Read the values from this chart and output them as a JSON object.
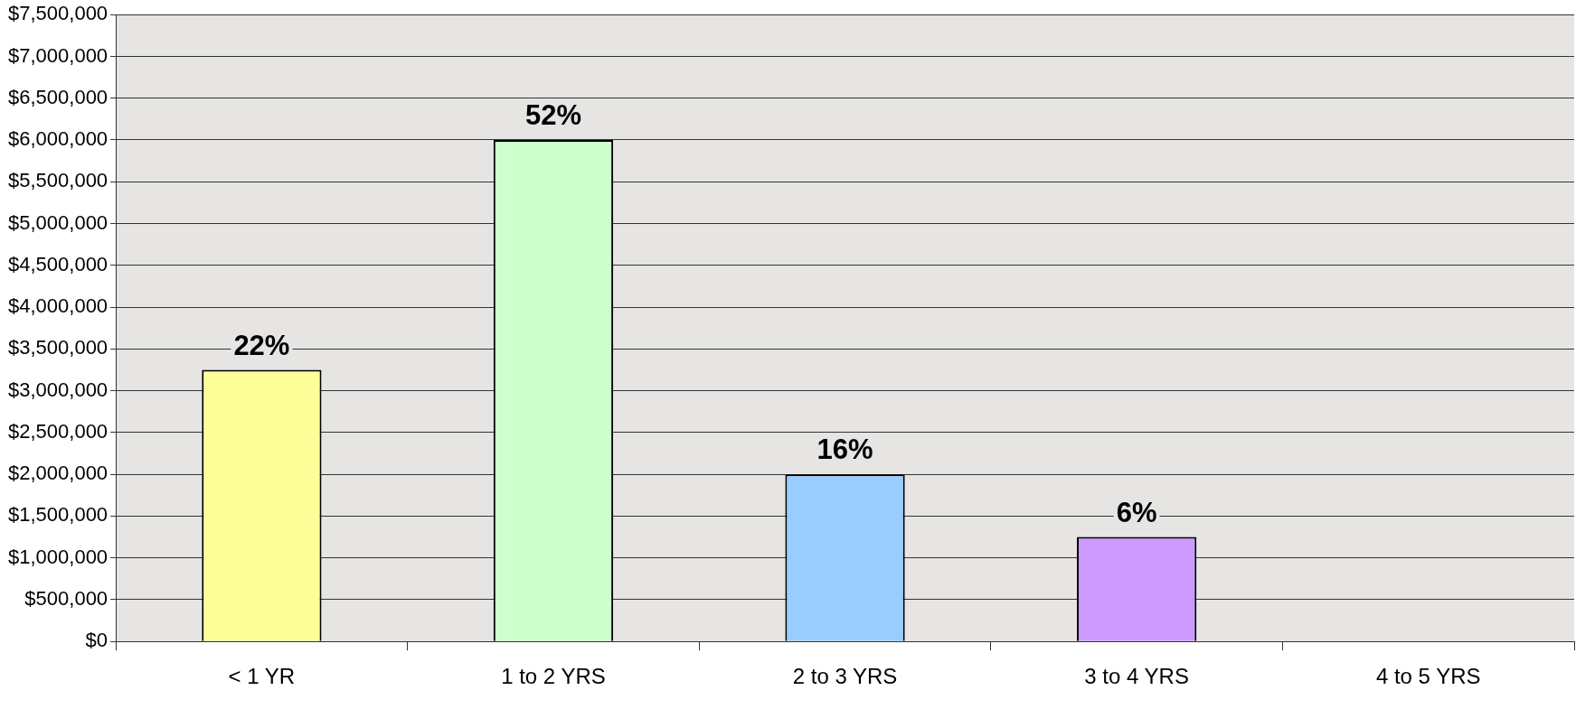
{
  "chart_data": {
    "type": "bar",
    "categories": [
      "< 1 YR",
      "1 to 2 YRS",
      "2 to 3 YRS",
      "3 to 4 YRS",
      "4 to 5 YRS"
    ],
    "values": [
      3250000,
      6000000,
      2000000,
      1250000,
      null
    ],
    "colors": [
      "#ffff99",
      "#ccffcc",
      "#99ccff",
      "#cc99ff",
      "#cccccc"
    ],
    "annotations": [
      {
        "text": "22%",
        "x": "< 1 YR",
        "y": 3250000
      },
      {
        "text": "52%",
        "x": "1 to 2 YRS",
        "y": 6000000
      },
      {
        "text": "16%",
        "x": "2 to 3 YRS",
        "y": 2000000
      },
      {
        "text": "6%",
        "x": "3 to 4 YRS",
        "y": 1250000
      }
    ],
    "ylim": [
      0,
      7500000
    ],
    "yticks": [
      {
        "value": 0,
        "label": "$0"
      },
      {
        "value": 500000,
        "label": "$500,000"
      },
      {
        "value": 1000000,
        "label": "$1,000,000"
      },
      {
        "value": 1500000,
        "label": "$1,500,000"
      },
      {
        "value": 2000000,
        "label": "$2,000,000"
      },
      {
        "value": 2500000,
        "label": "$2,500,000"
      },
      {
        "value": 3000000,
        "label": "$3,000,000"
      },
      {
        "value": 3500000,
        "label": "$3,500,000"
      },
      {
        "value": 4000000,
        "label": "$4,000,000"
      },
      {
        "value": 4500000,
        "label": "$4,500,000"
      },
      {
        "value": 5000000,
        "label": "$5,000,000"
      },
      {
        "value": 5500000,
        "label": "$5,500,000"
      },
      {
        "value": 6000000,
        "label": "$6,000,000"
      },
      {
        "value": 6500000,
        "label": "$6,500,000"
      },
      {
        "value": 7000000,
        "label": "$7,000,000"
      },
      {
        "value": 7500000,
        "label": "$7,500,000"
      }
    ],
    "grid": "y",
    "legend": false
  }
}
